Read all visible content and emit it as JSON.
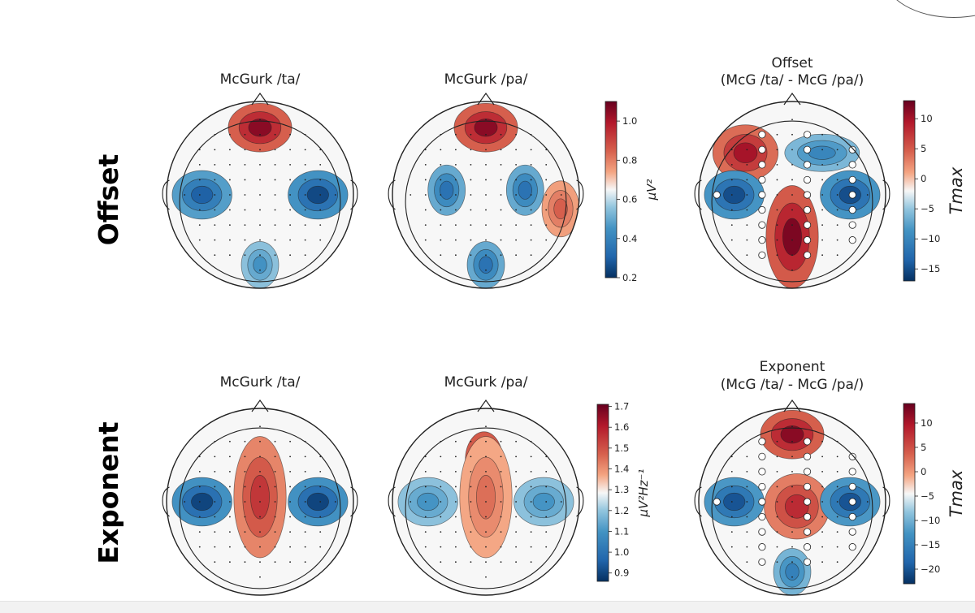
{
  "figure": {
    "rows": [
      {
        "label": "Offset",
        "colorbar_label": "μV²",
        "colorbar_ticks": [
          "0.2",
          "0.4",
          "0.6",
          "0.8",
          "1.0"
        ],
        "colorbar_range": [
          0.2,
          1.1
        ]
      },
      {
        "label": "Exponent",
        "colorbar_label": "μV²Hz⁻¹",
        "colorbar_ticks": [
          "0.9",
          "1.0",
          "1.1",
          "1.2",
          "1.3",
          "1.4",
          "1.5",
          "1.6",
          "1.7"
        ],
        "colorbar_range": [
          0.86,
          1.71
        ]
      }
    ],
    "diff_colorbars": [
      {
        "label": "Tmax",
        "ticks": [
          "10",
          "5",
          "0",
          "−5",
          "−10",
          "−15"
        ],
        "range": [
          -17,
          13
        ]
      },
      {
        "label": "Tmax",
        "ticks": [
          "10",
          "5",
          "0",
          "−5",
          "−10",
          "−15",
          "−20"
        ],
        "range": [
          -23,
          14
        ]
      }
    ],
    "colormap": {
      "low": "#053061",
      "mid": "#f7f7f7",
      "high": "#67001f"
    }
  },
  "chart_data": [
    {
      "type": "heatmap",
      "subtype": "scalp-topography",
      "title": "McGurk /ta/",
      "row": "Offset",
      "colorbar": "shared-row",
      "blobs": [
        {
          "position": "frontal",
          "polarity": "high",
          "value": 1.05
        },
        {
          "position": "left-temporal",
          "polarity": "low",
          "value": 0.3
        },
        {
          "position": "right-temporal",
          "polarity": "low",
          "value": 0.25
        },
        {
          "position": "occipital",
          "polarity": "low",
          "value": 0.45
        }
      ]
    },
    {
      "type": "heatmap",
      "subtype": "scalp-topography",
      "title": "McGurk /pa/",
      "row": "Offset",
      "colorbar": "shared-row",
      "blobs": [
        {
          "position": "frontal",
          "polarity": "high",
          "value": 1.05
        },
        {
          "position": "left-central",
          "polarity": "low",
          "value": 0.35
        },
        {
          "position": "right-central",
          "polarity": "low",
          "value": 0.35
        },
        {
          "position": "occipital",
          "polarity": "low",
          "value": 0.35
        },
        {
          "position": "lateral",
          "polarity": "high",
          "value": 0.85
        }
      ]
    },
    {
      "type": "heatmap",
      "subtype": "scalp-topography",
      "title": "Offset\n(McG /ta/ - McG /pa/)",
      "row": "Offset",
      "colorbar_range": [
        -17,
        13
      ],
      "significant_electrodes": "white markers",
      "blobs": [
        {
          "position": "left-frontal",
          "polarity": "high",
          "value": 10
        },
        {
          "position": "right-frontal",
          "polarity": "low",
          "value": -10
        },
        {
          "position": "left-temporal",
          "polarity": "low",
          "value": -15
        },
        {
          "position": "right-temporal",
          "polarity": "low",
          "value": -15
        },
        {
          "position": "central-occipital",
          "polarity": "high",
          "value": 12
        }
      ]
    },
    {
      "type": "heatmap",
      "subtype": "scalp-topography",
      "title": "McGurk /ta/",
      "row": "Exponent",
      "colorbar": "shared-row",
      "blobs": [
        {
          "position": "midline",
          "polarity": "high",
          "value": 1.55
        },
        {
          "position": "left-temporal",
          "polarity": "low",
          "value": 0.9
        },
        {
          "position": "right-temporal",
          "polarity": "low",
          "value": 0.9
        }
      ]
    },
    {
      "type": "heatmap",
      "subtype": "scalp-topography",
      "title": "McGurk /pa/",
      "row": "Exponent",
      "colorbar": "shared-row",
      "blobs": [
        {
          "position": "fronto-central",
          "polarity": "high",
          "value": 1.68
        },
        {
          "position": "midline",
          "polarity": "high",
          "value": 1.45
        },
        {
          "position": "left-temporal",
          "polarity": "low",
          "value": 1.1
        },
        {
          "position": "right-temporal",
          "polarity": "low",
          "value": 1.1
        }
      ]
    },
    {
      "type": "heatmap",
      "subtype": "scalp-topography",
      "title": "Exponent\n(McG /ta/ - McG /pa/)",
      "row": "Exponent",
      "colorbar_range": [
        -23,
        14
      ],
      "significant_electrodes": "white markers",
      "blobs": [
        {
          "position": "frontal",
          "polarity": "high",
          "value": 12
        },
        {
          "position": "central",
          "polarity": "high",
          "value": 8
        },
        {
          "position": "left-temporal",
          "polarity": "low",
          "value": -20
        },
        {
          "position": "right-temporal",
          "polarity": "low",
          "value": -20
        },
        {
          "position": "occipital",
          "polarity": "low",
          "value": -15
        }
      ]
    }
  ]
}
